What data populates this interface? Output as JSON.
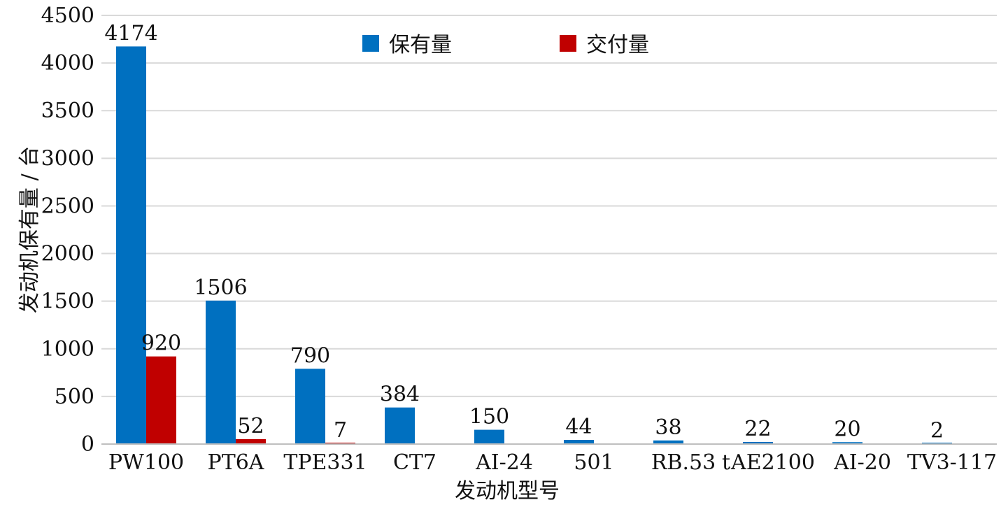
{
  "chart_data": {
    "type": "bar",
    "categories": [
      "PW100",
      "PT6A",
      "TPE331",
      "CT7",
      "AI-24",
      "501",
      "RB.53",
      "AE2100",
      "AI-20",
      "TV3-117"
    ],
    "series": [
      {
        "name": "保有量",
        "values": [
          4174,
          1506,
          790,
          384,
          150,
          44,
          38,
          22,
          20,
          2
        ],
        "color": "#0070C0"
      },
      {
        "name": "交付量",
        "values": [
          920,
          52,
          7,
          null,
          null,
          null,
          null,
          null,
          null,
          null
        ],
        "color": "#C00000"
      }
    ],
    "xlabel": "发动机型号",
    "ylabel": "发动机保有量 / 台",
    "ylim": [
      0,
      4500
    ],
    "yticks": [
      0,
      500,
      1000,
      1500,
      2000,
      2500,
      3000,
      3500,
      4000,
      4500
    ],
    "stray_label": "t",
    "grid": true,
    "legend": "top-center"
  }
}
